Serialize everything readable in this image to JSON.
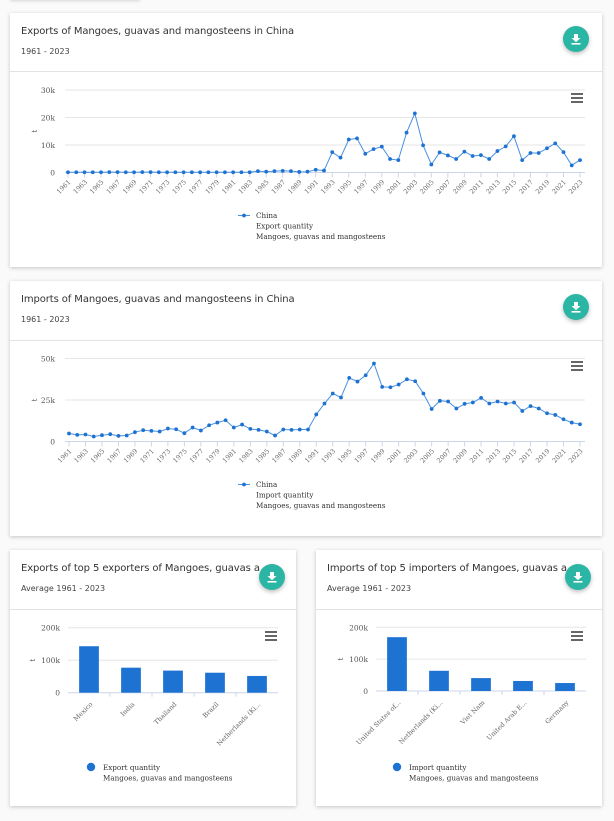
{
  "cards": [
    {
      "title": "Exports of Mangoes, guavas and mangosteens in China",
      "subtitle": "1961 - 2023",
      "download_icon": "download-icon",
      "menu_icon": "hamburger-menu-icon"
    },
    {
      "title": "Imports of Mangoes, guavas and mangosteens in China",
      "subtitle": "1961 - 2023",
      "download_icon": "download-icon",
      "menu_icon": "hamburger-menu-icon"
    },
    {
      "title": "Exports of top 5 exporters of Mangoes, guavas a...",
      "subtitle": "Average 1961 - 2023",
      "download_icon": "download-icon",
      "menu_icon": "hamburger-menu-icon"
    },
    {
      "title": "Imports of top 5 importers of Mangoes, guavas a...",
      "subtitle": "Average 1961 - 2023",
      "download_icon": "download-icon",
      "menu_icon": "hamburger-menu-icon"
    }
  ],
  "colors": {
    "series": "#1e73d2",
    "line": "#4a90e2",
    "button": "#2ab5a5"
  },
  "chart_data": [
    {
      "type": "line",
      "title": "Exports of Mangoes, guavas and mangosteens in China",
      "subtitle": "1961 - 2023",
      "xlabel": "",
      "ylabel": "t",
      "ylim": [
        0,
        30000
      ],
      "yticks": [
        0,
        10000,
        20000,
        30000
      ],
      "ytick_labels": [
        "0",
        "10k",
        "20k",
        "30k"
      ],
      "x": [
        1961,
        1962,
        1963,
        1964,
        1965,
        1966,
        1967,
        1968,
        1969,
        1970,
        1971,
        1972,
        1973,
        1974,
        1975,
        1976,
        1977,
        1978,
        1979,
        1980,
        1981,
        1982,
        1983,
        1984,
        1985,
        1986,
        1987,
        1988,
        1989,
        1990,
        1991,
        1992,
        1993,
        1994,
        1995,
        1996,
        1997,
        1998,
        1999,
        2000,
        2001,
        2002,
        2003,
        2004,
        2005,
        2006,
        2007,
        2008,
        2009,
        2010,
        2011,
        2012,
        2013,
        2014,
        2015,
        2016,
        2017,
        2018,
        2019,
        2020,
        2021,
        2022,
        2023
      ],
      "xtick_labels": [
        "1961",
        "1963",
        "1965",
        "1967",
        "1969",
        "1971",
        "1973",
        "1975",
        "1977",
        "1979",
        "1981",
        "1983",
        "1985",
        "1987",
        "1989",
        "1991",
        "1993",
        "1995",
        "1997",
        "1999",
        "2001",
        "2003",
        "2005",
        "2007",
        "2009",
        "2011",
        "2013",
        "2015",
        "2017",
        "2019",
        "2021",
        "2023"
      ],
      "series": [
        {
          "name": "China",
          "legend_lines": [
            "China",
            "Export quantity",
            "Mangoes, guavas and mangosteens"
          ],
          "values": [
            100,
            100,
            100,
            100,
            100,
            150,
            150,
            100,
            100,
            150,
            150,
            100,
            100,
            100,
            100,
            100,
            100,
            100,
            100,
            100,
            100,
            100,
            100,
            500,
            300,
            500,
            600,
            500,
            200,
            300,
            1000,
            700,
            7400,
            5400,
            12000,
            12400,
            6800,
            8500,
            9400,
            4900,
            4500,
            14500,
            21500,
            9900,
            2900,
            7300,
            6200,
            4900,
            7600,
            6000,
            6300,
            4900,
            7800,
            9500,
            13200,
            4500,
            7100,
            7100,
            8800,
            10600,
            7400,
            2600,
            4500
          ]
        }
      ],
      "grid": true,
      "legend": "bottom-center"
    },
    {
      "type": "line",
      "title": "Imports of Mangoes, guavas and mangosteens in China",
      "subtitle": "1961 - 2023",
      "xlabel": "",
      "ylabel": "t",
      "ylim": [
        0,
        50000
      ],
      "yticks": [
        0,
        25000,
        50000
      ],
      "ytick_labels": [
        "0",
        "25k",
        "50k"
      ],
      "x": [
        1961,
        1962,
        1963,
        1964,
        1965,
        1966,
        1967,
        1968,
        1969,
        1970,
        1971,
        1972,
        1973,
        1974,
        1975,
        1976,
        1977,
        1978,
        1979,
        1980,
        1981,
        1982,
        1983,
        1984,
        1985,
        1986,
        1987,
        1988,
        1989,
        1990,
        1991,
        1992,
        1993,
        1994,
        1995,
        1996,
        1997,
        1998,
        1999,
        2000,
        2001,
        2002,
        2003,
        2004,
        2005,
        2006,
        2007,
        2008,
        2009,
        2010,
        2011,
        2012,
        2013,
        2014,
        2015,
        2016,
        2017,
        2018,
        2019,
        2020,
        2021,
        2022,
        2023
      ],
      "xtick_labels": [
        "1961",
        "1963",
        "1965",
        "1967",
        "1969",
        "1971",
        "1973",
        "1975",
        "1977",
        "1979",
        "1981",
        "1983",
        "1985",
        "1987",
        "1989",
        "1991",
        "1993",
        "1995",
        "1997",
        "1999",
        "2001",
        "2003",
        "2005",
        "2007",
        "2009",
        "2011",
        "2013",
        "2015",
        "2017",
        "2019",
        "2021",
        "2023"
      ],
      "series": [
        {
          "name": "China",
          "legend_lines": [
            "China",
            "Import quantity",
            "Mangoes, guavas and mangosteens"
          ],
          "values": [
            4800,
            4000,
            4200,
            3000,
            3800,
            4400,
            3400,
            3600,
            5600,
            6800,
            6400,
            6000,
            7800,
            7400,
            5000,
            8400,
            6600,
            9800,
            11400,
            12800,
            8400,
            10200,
            7600,
            7000,
            6000,
            3600,
            7200,
            7000,
            7200,
            7200,
            16300,
            22900,
            28900,
            26500,
            38300,
            36100,
            39900,
            47000,
            32900,
            32700,
            34300,
            37500,
            36300,
            28900,
            19600,
            24500,
            24100,
            19900,
            22700,
            23500,
            26300,
            22900,
            24100,
            22900,
            23500,
            18400,
            21300,
            19900,
            17000,
            16000,
            13400,
            11400,
            10400
          ]
        }
      ],
      "grid": true,
      "legend": "bottom-center"
    },
    {
      "type": "bar",
      "title": "Exports of top 5 exporters of Mangoes, guavas a...",
      "subtitle": "Average 1961 - 2023",
      "xlabel": "",
      "ylabel": "t",
      "ylim": [
        0,
        200000
      ],
      "yticks": [
        0,
        100000,
        200000
      ],
      "ytick_labels": [
        "0",
        "100k",
        "200k"
      ],
      "categories": [
        "Mexico",
        "India",
        "Thailand",
        "Brazil",
        "Netherlands (Ki..."
      ],
      "series": [
        {
          "name": "Export quantity",
          "legend_lines": [
            "Export quantity",
            "Mangoes, guavas and mangosteens"
          ],
          "values": [
            143000,
            77000,
            68000,
            61500,
            51500
          ]
        }
      ],
      "grid": true,
      "legend": "bottom-center"
    },
    {
      "type": "bar",
      "title": "Imports of top 5 importers of Mangoes, guavas a...",
      "subtitle": "Average 1961 - 2023",
      "xlabel": "",
      "ylabel": "t",
      "ylim": [
        0,
        200000
      ],
      "yticks": [
        0,
        100000,
        200000
      ],
      "ytick_labels": [
        "0",
        "100k",
        "200k"
      ],
      "categories": [
        "United States of...",
        "Netherlands (Ki...",
        "Viet Nam",
        "United Arab E...",
        "Germany"
      ],
      "series": [
        {
          "name": "Import quantity",
          "legend_lines": [
            "Import quantity",
            "Mangoes, guavas and mangosteens"
          ],
          "values": [
            169000,
            63500,
            40500,
            31500,
            25000
          ]
        }
      ],
      "grid": true,
      "legend": "bottom-center"
    }
  ]
}
